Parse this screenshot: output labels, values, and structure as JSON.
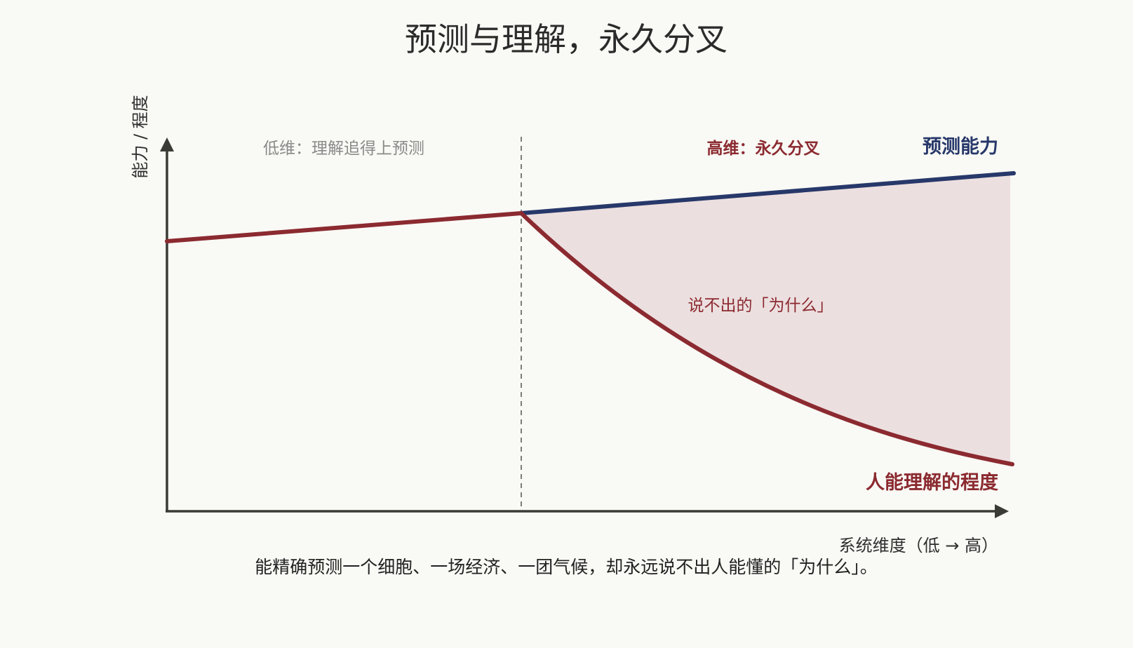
{
  "title": "预测与理解，永久分叉",
  "y_axis_label": "能力 / 程度",
  "x_axis_label": "系统维度（低 → 高）",
  "regions": {
    "low": "低维：理解追得上预测",
    "high": "高维：永久分叉"
  },
  "curves": {
    "prediction": {
      "label": "预测能力",
      "color": "#27386a"
    },
    "understanding": {
      "label": "人能理解的程度",
      "color": "#8b2a30"
    }
  },
  "gap_label": "说不出的「为什么」",
  "gap_fill_color": "#ecdfdf",
  "caption": "能精确预测一个细胞、一场经济、一团气候，却永远说不出人能懂的「为什么」。"
}
